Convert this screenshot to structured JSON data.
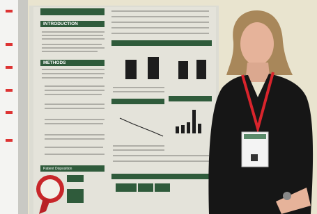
{
  "poster": {
    "headings": [
      "INTRODUCTION",
      "METHODS",
      "Patient Disposition"
    ]
  }
}
